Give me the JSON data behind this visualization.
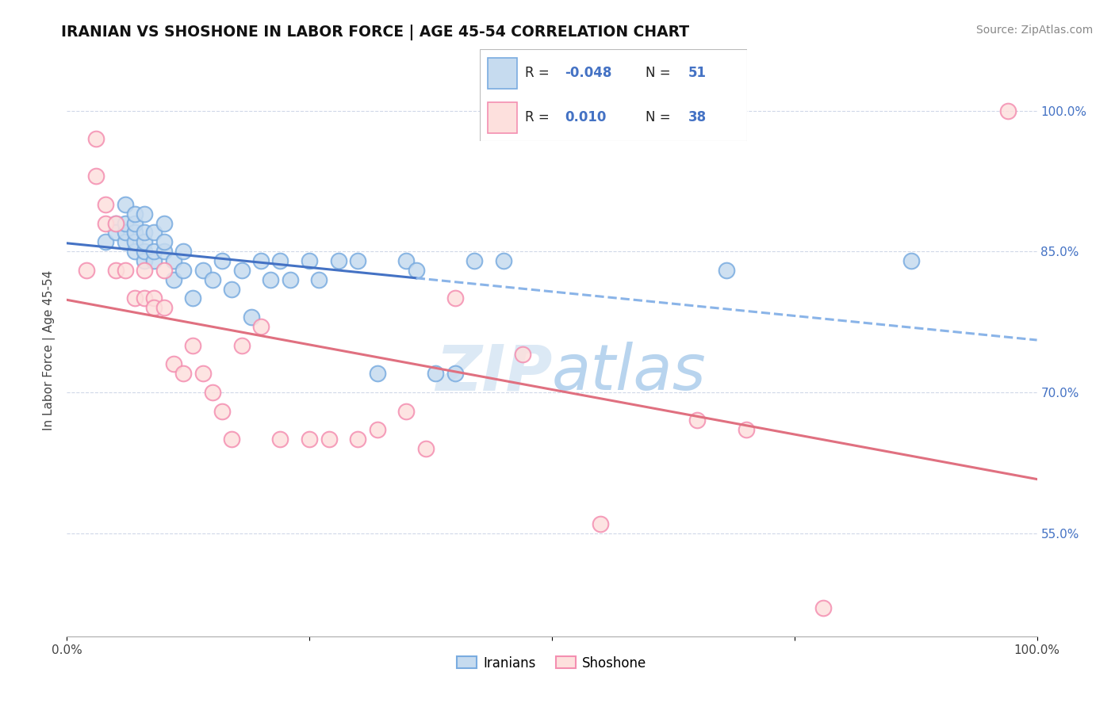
{
  "title": "IRANIAN VS SHOSHONE IN LABOR FORCE | AGE 45-54 CORRELATION CHART",
  "source_text": "Source: ZipAtlas.com",
  "ylabel": "In Labor Force | Age 45-54",
  "xlim": [
    0.0,
    1.0
  ],
  "ylim": [
    0.44,
    1.05
  ],
  "x_ticks": [
    0.0,
    0.25,
    0.5,
    0.75,
    1.0
  ],
  "x_tick_labels": [
    "0.0%",
    "",
    "",
    "",
    "100.0%"
  ],
  "y_tick_right": [
    0.55,
    0.7,
    0.85,
    1.0
  ],
  "y_tick_right_labels": [
    "55.0%",
    "70.0%",
    "85.0%",
    "100.0%"
  ],
  "blue_R": -0.048,
  "blue_N": 51,
  "pink_R": 0.01,
  "pink_N": 38,
  "blue_color": "#7aace0",
  "blue_fill": "#c6dbef",
  "pink_color": "#f48fb1",
  "pink_fill": "#fde0dd",
  "trend_blue_solid": "#4472c4",
  "trend_blue_dash": "#8ab4e8",
  "trend_pink": "#e07080",
  "legend_text_color": "#4472c4",
  "watermark_color": "#dce9f5",
  "blue_x": [
    0.04,
    0.05,
    0.05,
    0.06,
    0.06,
    0.06,
    0.06,
    0.07,
    0.07,
    0.07,
    0.07,
    0.07,
    0.08,
    0.08,
    0.08,
    0.08,
    0.08,
    0.09,
    0.09,
    0.09,
    0.1,
    0.1,
    0.1,
    0.11,
    0.11,
    0.12,
    0.12,
    0.13,
    0.14,
    0.15,
    0.16,
    0.17,
    0.18,
    0.19,
    0.2,
    0.21,
    0.22,
    0.23,
    0.25,
    0.26,
    0.28,
    0.3,
    0.32,
    0.35,
    0.36,
    0.38,
    0.4,
    0.42,
    0.45,
    0.68,
    0.87
  ],
  "blue_y": [
    0.86,
    0.88,
    0.87,
    0.86,
    0.87,
    0.88,
    0.9,
    0.85,
    0.86,
    0.87,
    0.88,
    0.89,
    0.84,
    0.85,
    0.86,
    0.87,
    0.89,
    0.84,
    0.85,
    0.87,
    0.85,
    0.86,
    0.88,
    0.82,
    0.84,
    0.83,
    0.85,
    0.8,
    0.83,
    0.82,
    0.84,
    0.81,
    0.83,
    0.78,
    0.84,
    0.82,
    0.84,
    0.82,
    0.84,
    0.82,
    0.84,
    0.84,
    0.72,
    0.84,
    0.83,
    0.72,
    0.72,
    0.84,
    0.84,
    0.83,
    0.84
  ],
  "pink_x": [
    0.02,
    0.03,
    0.03,
    0.04,
    0.04,
    0.05,
    0.05,
    0.06,
    0.07,
    0.08,
    0.08,
    0.09,
    0.09,
    0.1,
    0.1,
    0.11,
    0.12,
    0.13,
    0.14,
    0.15,
    0.16,
    0.17,
    0.18,
    0.2,
    0.22,
    0.25,
    0.27,
    0.3,
    0.32,
    0.35,
    0.37,
    0.4,
    0.47,
    0.55,
    0.65,
    0.7,
    0.78,
    0.97
  ],
  "pink_y": [
    0.83,
    0.97,
    0.93,
    0.9,
    0.88,
    0.88,
    0.83,
    0.83,
    0.8,
    0.83,
    0.8,
    0.8,
    0.79,
    0.83,
    0.79,
    0.73,
    0.72,
    0.75,
    0.72,
    0.7,
    0.68,
    0.65,
    0.75,
    0.77,
    0.65,
    0.65,
    0.65,
    0.65,
    0.66,
    0.68,
    0.64,
    0.8,
    0.74,
    0.56,
    0.67,
    0.66,
    0.47,
    1.0
  ]
}
